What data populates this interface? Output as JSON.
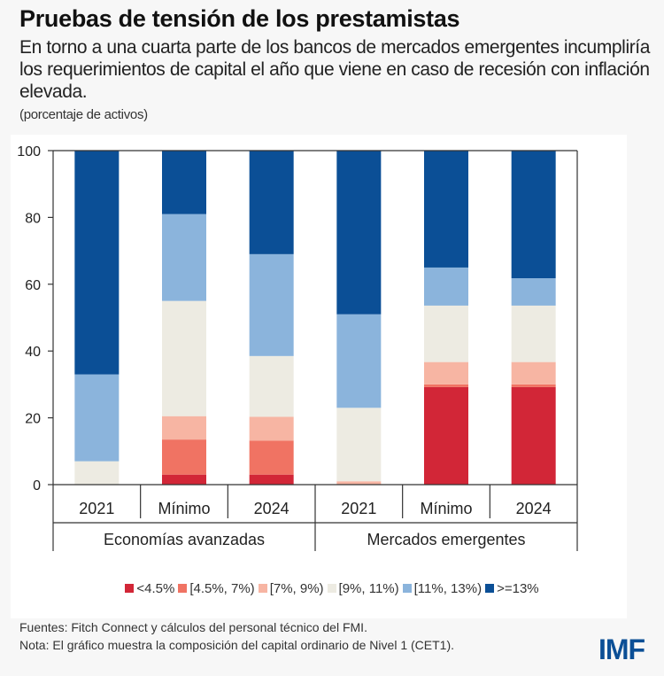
{
  "title": "Pruebas de tensión de los prestamistas",
  "subtitle": "En torno a una cuarta parte de los bancos de mercados emergentes incumpliría los requerimientos de capital el año que viene en caso de recesión con inflación elevada.",
  "units": "(porcentaje de activos)",
  "chart_data": {
    "type": "bar",
    "stacked": true,
    "categories": [
      "2021",
      "Mínimo",
      "2024",
      "2021",
      "Mínimo",
      "2024"
    ],
    "groups": [
      {
        "label": "Economías avanzadas",
        "categories": [
          0,
          1,
          2
        ]
      },
      {
        "label": "Mercados emergentes",
        "categories": [
          3,
          4,
          5
        ]
      }
    ],
    "ylim": [
      0,
      100
    ],
    "yticks": [
      "0",
      "20",
      "40",
      "60",
      "80",
      "100"
    ],
    "grid": false,
    "legend_position": "bottom",
    "series": [
      {
        "name": "<4.5%",
        "color": "#d22637",
        "values": [
          0,
          3,
          3,
          0,
          29.2,
          29.2
        ]
      },
      {
        "name": "[4.5%, 7%)",
        "color": "#f07363",
        "values": [
          0,
          10.5,
          10.2,
          0,
          0.8,
          0.8
        ]
      },
      {
        "name": "[7%, 9%)",
        "color": "#f7b5a3",
        "values": [
          0,
          7,
          7.1,
          1,
          6.7,
          6.7
        ]
      },
      {
        "name": "[9%, 11%)",
        "color": "#edebe2",
        "values": [
          7,
          34.5,
          18.2,
          22,
          16.9,
          16.9
        ]
      },
      {
        "name": "[11%, 13%)",
        "color": "#8bb4dc",
        "values": [
          26,
          26,
          30.5,
          28,
          11.4,
          8.2
        ]
      },
      {
        "name": ">=13%",
        "color": "#0b4f96",
        "values": [
          67,
          19,
          31,
          49,
          35,
          38.2
        ]
      }
    ]
  },
  "footer": {
    "sources": "Fuentes: Fitch Connect y cálculos del personal técnico del FMI.",
    "note": "Nota: El gráfico muestra la composición del capital ordinario de Nivel 1 (CET1)."
  },
  "logo_text": "IMF"
}
